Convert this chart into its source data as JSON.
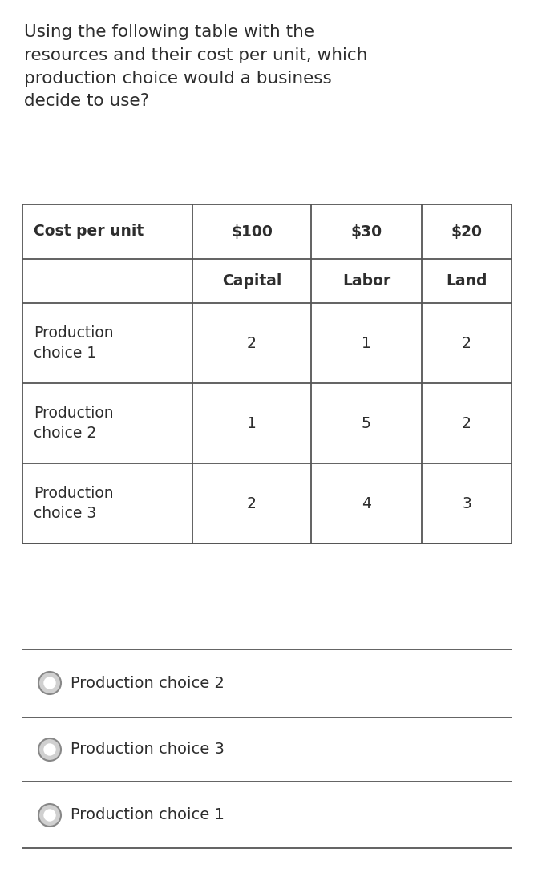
{
  "question_text": "Using the following table with the\nresources and their cost per unit, which\nproduction choice would a business\ndecide to use?",
  "bg_color": "#ffffff",
  "text_color": "#2d2d2d",
  "table": {
    "col_headers_row1": [
      "Cost per unit",
      "$100",
      "$30",
      "$20"
    ],
    "col_headers_row2": [
      "",
      "Capital",
      "Labor",
      "Land"
    ],
    "rows": [
      [
        "Production\nchoice 1",
        "2",
        "1",
        "2"
      ],
      [
        "Production\nchoice 2",
        "1",
        "5",
        "2"
      ],
      [
        "Production\nchoice 3",
        "2",
        "4",
        "3"
      ]
    ]
  },
  "options": [
    "Production choice 2",
    "Production choice 3",
    "Production choice 1"
  ],
  "line_color": "#555555",
  "header_font_size": 13.5,
  "cell_font_size": 13.5,
  "question_font_size": 15.5,
  "option_font_size": 14
}
